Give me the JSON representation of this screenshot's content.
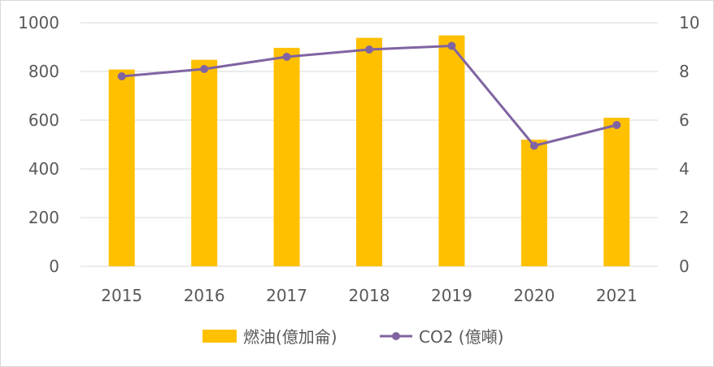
{
  "chart_data": {
    "type": "bar",
    "categories": [
      "2015",
      "2016",
      "2017",
      "2018",
      "2019",
      "2020",
      "2021"
    ],
    "series": [
      {
        "name": "燃油(億加侖)",
        "type": "bar",
        "axis": "left",
        "color": "#ffc000",
        "values": [
          808,
          848,
          897,
          938,
          948,
          520,
          610
        ]
      },
      {
        "name": "CO2 (億噸)",
        "type": "line",
        "axis": "right",
        "color": "#8064a2",
        "values": [
          7.8,
          8.1,
          8.6,
          8.9,
          9.05,
          4.95,
          5.8
        ]
      }
    ],
    "y_left": {
      "ylim": [
        0,
        1000
      ],
      "ticks": [
        "0",
        "200",
        "400",
        "600",
        "800",
        "1000"
      ]
    },
    "y_right": {
      "ylim": [
        0,
        10
      ],
      "ticks": [
        "0",
        "2",
        "4",
        "6",
        "8",
        "10"
      ]
    },
    "grid": true,
    "legend_position": "bottom"
  }
}
